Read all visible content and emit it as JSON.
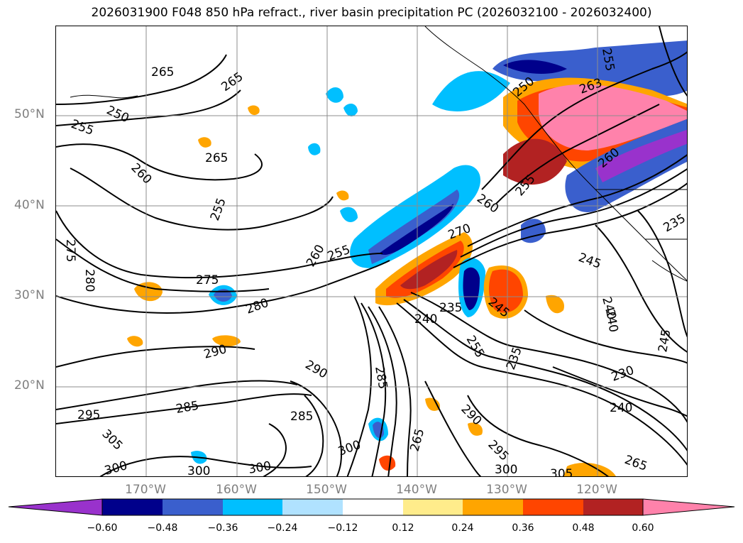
{
  "title": "2026031900 F048 850 hPa refract., river basin precipitation PC (2026032100 - 2026032400)",
  "lat_labels": [
    "50°N",
    "40°N",
    "30°N",
    "20°N"
  ],
  "lon_labels": [
    "170°W",
    "160°W",
    "150°W",
    "140°W",
    "130°W",
    "120°W"
  ],
  "contour_labels": [
    "265",
    "265",
    "250",
    "255",
    "265",
    "260",
    "255",
    "255",
    "260",
    "255",
    "260",
    "270",
    "275",
    "280",
    "290",
    "290",
    "285",
    "285",
    "295",
    "305",
    "300",
    "300",
    "300",
    "285",
    "300",
    "235",
    "240",
    "245",
    "240",
    "235",
    "255",
    "265",
    "290",
    "295",
    "300",
    "305",
    "265",
    "240",
    "230",
    "245",
    "240",
    "235",
    "245",
    "250",
    "260",
    "263",
    "255",
    "275",
    "280"
  ],
  "colorbar": {
    "ticks": [
      "−0.60",
      "−0.48",
      "−0.36",
      "−0.24",
      "−0.12",
      "0.12",
      "0.24",
      "0.36",
      "0.48",
      "0.60"
    ],
    "colors": [
      "#9932cc",
      "#00008b",
      "#3a5fcd",
      "#00bfff",
      "#b0e2ff",
      "#ffffff",
      "#ffec8b",
      "#ffa500",
      "#ff4500",
      "#b22222",
      "#ff82ab"
    ]
  }
}
